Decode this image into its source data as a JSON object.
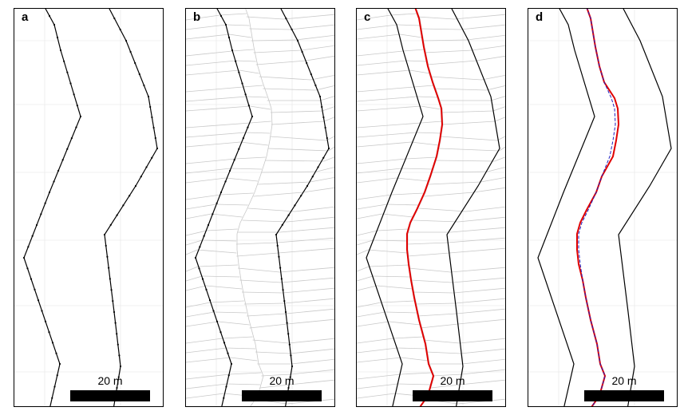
{
  "panels": [
    {
      "letter": "a",
      "scale_label": "20 m"
    },
    {
      "letter": "b",
      "scale_label": "20 m"
    },
    {
      "letter": "c",
      "scale_label": "20 m"
    },
    {
      "letter": "d",
      "scale_label": "20 m"
    }
  ],
  "colors": {
    "bank_line": "#000000",
    "mesh_line": "#c8c8c8",
    "grid_line": "#ebebeb",
    "centerline": "#e00000",
    "smoothed_centerline": "#2020c0"
  }
}
